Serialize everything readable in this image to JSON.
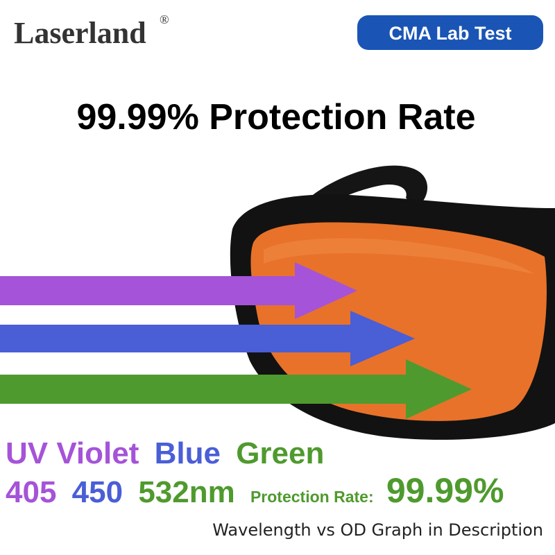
{
  "logo": {
    "name": "Laserland",
    "mark": "®"
  },
  "badge": "CMA Lab Test",
  "headline": "99.99% Protection Rate",
  "colors_line": {
    "uv_violet": "UV Violet",
    "blue": "Blue",
    "green": "Green"
  },
  "wavelengths": {
    "violet": "405",
    "blue": "450",
    "green": "532nm"
  },
  "protection": {
    "label": "Protection Rate:",
    "value": "99.99%"
  },
  "footer": "Wavelength vs OD Graph in Description"
}
